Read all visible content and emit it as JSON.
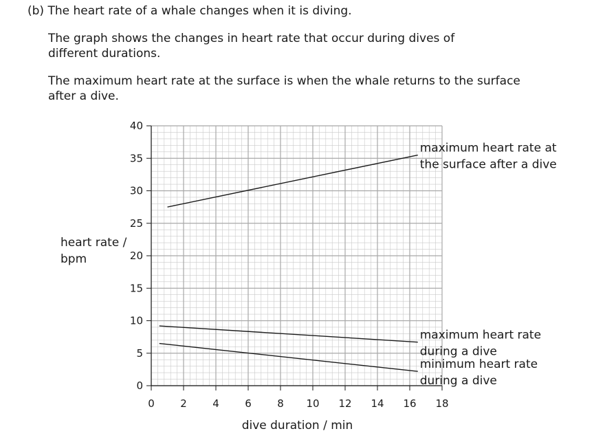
{
  "question": {
    "label": "(b) The heart rate of a whale changes when it is diving.",
    "paragraph1": "The graph shows the changes in heart rate that occur during dives of different durations.",
    "paragraph2": "The maximum heart rate at the surface is when the whale returns to the surface after a dive."
  },
  "chart_data": {
    "type": "line",
    "xlabel": "dive duration / min",
    "ylabel": "heart rate / bpm",
    "xlim": [
      0,
      18
    ],
    "ylim": [
      0,
      40
    ],
    "x_ticks": [
      0,
      2,
      4,
      6,
      8,
      10,
      12,
      14,
      16,
      18
    ],
    "y_ticks": [
      0,
      5,
      10,
      15,
      20,
      25,
      30,
      35,
      40
    ],
    "grid": true,
    "series": [
      {
        "name": "maximum heart rate at the surface after a dive",
        "label_lines": [
          "maximum heart rate at",
          "the surface after a dive"
        ],
        "x": [
          1,
          16.5
        ],
        "y": [
          27.5,
          35.5
        ]
      },
      {
        "name": "maximum heart rate during a dive",
        "label_lines": [
          "maximum heart rate",
          "during a dive"
        ],
        "x": [
          0.5,
          16.5
        ],
        "y": [
          9.2,
          6.7
        ]
      },
      {
        "name": "minimum heart rate during a dive",
        "label_lines": [
          "minimum heart rate",
          "during a dive"
        ],
        "x": [
          0.5,
          16.5
        ],
        "y": [
          6.5,
          2.2
        ]
      }
    ]
  }
}
